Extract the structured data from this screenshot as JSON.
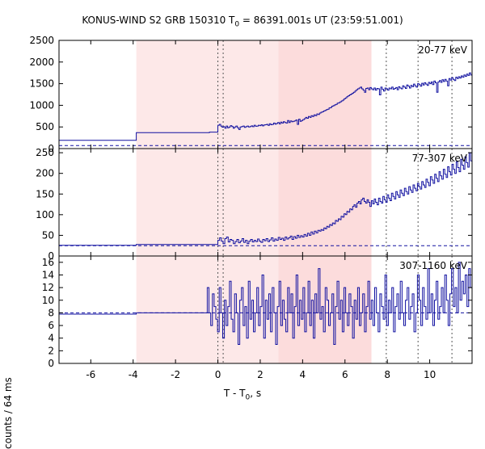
{
  "title": {
    "prefix": "KONUS-WIND S2 GRB 150310 T",
    "subscript": "0",
    "suffix": " = 86391.001s UT (23:59:51.001)"
  },
  "ylabel": "counts / 64 ms",
  "xlabel": {
    "prefix": "T - T",
    "subscript": "0",
    "suffix": ", s"
  },
  "colors": {
    "line": "#1010a0",
    "background": "#ff2020",
    "shade_light": "#fde8e8",
    "shade_dark": "#fcdcdc",
    "axis": "#000000",
    "vline": "#555555"
  },
  "chart_data": {
    "type": "line",
    "style": "step",
    "xlim": [
      -7.5,
      12
    ],
    "x_ticks": [
      -6,
      -4,
      -2,
      0,
      2,
      4,
      6,
      8,
      10
    ],
    "x_tick_labels": [
      "-6",
      "-4",
      "-2",
      "0",
      "2",
      "4",
      "6",
      "8",
      "10"
    ],
    "shaded_intervals": [
      {
        "from": -3.85,
        "to": 2.85,
        "shade": "light"
      },
      {
        "from": 2.85,
        "to": 7.25,
        "shade": "dark"
      }
    ],
    "vertical_lines": [
      0.0,
      0.25,
      7.95,
      9.45,
      11.05
    ],
    "panels": [
      {
        "label": "20-77 keV",
        "ylim": [
          0,
          2500
        ],
        "y_ticks": [
          0,
          500,
          1000,
          1500,
          2000,
          2500
        ],
        "y_tick_labels": [
          "0",
          "500",
          "1000",
          "1500",
          "2000",
          "2500"
        ],
        "background_level": 70,
        "series": [
          {
            "name": "20-77 keV",
            "segments": [
              {
                "from": -7.5,
                "to": -3.85,
                "values": [
                  190
                ]
              },
              {
                "from": -3.85,
                "to": -0.4,
                "values": [
                  370
                ]
              },
              {
                "from": -0.4,
                "to": 0.0,
                "values": [
                  380
                ]
              },
              {
                "from": 0.0,
                "to": 4.8,
                "values": [
                  540,
                  560,
                  520,
                  495,
                  505,
                  470,
                  520,
                  480,
                  500,
                  530,
                  510,
                  470,
                  500,
                  520,
                  480,
                  440,
                  500,
                  510,
                  520,
                  490,
                  505,
                  520,
                  500,
                  510,
                  525,
                  505,
                  540,
                  515,
                  520,
                  540,
                  530,
                  550,
                  525,
                  545,
                  550,
                  560,
                  535,
                  575,
                  550,
                  560,
                  590,
                  565,
                  580,
                  600,
                  570,
                  610,
                  590,
                  620,
                  600,
                  590,
                  650,
                  600,
                  640,
                  620,
                  630,
                  640,
                  660,
                  560,
                  680,
                  630,
                  650,
                  670,
                  690,
                  720,
                  700,
                  740,
                  720,
                  760,
                  740,
                  780,
                  760,
                  800,
                  790
                ]
              },
              {
                "from": 4.8,
                "to": 12.0,
                "values": [
                  820,
                  840,
                  850,
                  870,
                  880,
                  900,
                  910,
                  940,
                  950,
                  980,
                  990,
                  1010,
                  1020,
                  1050,
                  1060,
                  1080,
                  1100,
                  1120,
                  1150,
                  1170,
                  1200,
                  1220,
                  1240,
                  1260,
                  1280,
                  1300,
                  1330,
                  1360,
                  1380,
                  1400,
                  1420,
                  1380,
                  1350,
                  1300,
                  1390,
                  1400,
                  1360,
                  1410,
                  1380,
                  1360,
                  1400,
                  1350,
                  1390,
                  1380,
                  1240,
                  1420,
                  1370,
                  1330,
                  1400,
                  1380,
                  1350,
                  1400,
                  1380,
                  1420,
                  1370,
                  1390,
                  1410,
                  1360,
                  1430,
                  1400,
                  1380,
                  1450,
                  1420,
                  1390,
                  1470,
                  1440,
                  1400,
                  1460,
                  1430,
                  1490,
                  1450,
                  1420,
                  1500,
                  1480,
                  1440,
                  1510,
                  1470,
                  1520,
                  1490,
                  1460,
                  1530,
                  1500,
                  1540,
                  1480,
                  1560,
                  1520,
                  1300,
                  1540,
                  1570,
                  1530,
                  1590,
                  1550,
                  1600,
                  1560,
                  1450,
                  1620,
                  1580,
                  1640,
                  1600,
                  1570,
                  1650,
                  1620,
                  1660,
                  1630,
                  1680,
                  1650,
                  1700,
                  1670,
                  1720,
                  1690,
                  1750,
                  1700
                ]
              }
            ]
          }
        ]
      },
      {
        "label": "77-307 keV",
        "ylim": [
          0,
          260
        ],
        "y_ticks": [
          0,
          50,
          100,
          150,
          200,
          250
        ],
        "y_tick_labels": [
          "0",
          "50",
          "100",
          "150",
          "200",
          "250"
        ],
        "background_level": 25,
        "series": [
          {
            "name": "77-307 keV",
            "segments": [
              {
                "from": -7.5,
                "to": -3.85,
                "values": [
                  26
                ]
              },
              {
                "from": -3.85,
                "to": 0.0,
                "values": [
                  28
                ]
              },
              {
                "from": 0.0,
                "to": 4.8,
                "values": [
                  38,
                  44,
                  36,
                  30,
                  42,
                  46,
                  34,
                  40,
                  38,
                  30,
                  35,
                  40,
                  32,
                  36,
                  42,
                  33,
                  38,
                  30,
                  36,
                  40,
                  34,
                  38,
                  35,
                  41,
                  36,
                  33,
                  40,
                  37,
                  42,
                  35,
                  39,
                  44,
                  36,
                  41,
                  38,
                  45,
                  40,
                  43,
                  38,
                  46,
                  41,
                  44,
                  48,
                  40,
                  47,
                  43,
                  50,
                  45,
                  49,
                  46,
                  52,
                  48,
                  55,
                  50,
                  58,
                  53,
                  60,
                  56,
                  62
                ]
              },
              {
                "from": 4.8,
                "to": 12.0,
                "values": [
                  60,
                  64,
                  62,
                  68,
                  66,
                  72,
                  70,
                  76,
                  74,
                  80,
                  78,
                  86,
                  84,
                  90,
                  88,
                  96,
                  94,
                  102,
                  100,
                  108,
                  106,
                  114,
                  112,
                  120,
                  124,
                  118,
                  128,
                  132,
                  126,
                  136,
                  140,
                  132,
                  128,
                  136,
                  130,
                  120,
                  134,
                  126,
                  138,
                  130,
                  124,
                  140,
                  132,
                  128,
                  144,
                  136,
                  130,
                  148,
                  140,
                  134,
                  152,
                  144,
                  138,
                  156,
                  148,
                  142,
                  160,
                  152,
                  146,
                  164,
                  156,
                  150,
                  168,
                  160,
                  154,
                  172,
                  164,
                  158,
                  176,
                  168,
                  162,
                  180,
                  172,
                  166,
                  186,
                  178,
                  170,
                  192,
                  184,
                  176,
                  198,
                  188,
                  180,
                  204,
                  194,
                  186,
                  210,
                  198,
                  190,
                  216,
                  204,
                  196,
                  222,
                  210,
                  200,
                  228,
                  214,
                  204,
                  234,
                  220,
                  210,
                  240,
                  226,
                  215,
                  250,
                  230
                ]
              }
            ]
          }
        ]
      },
      {
        "label": "307-1160 keV",
        "ylim": [
          0,
          17
        ],
        "y_ticks": [
          0,
          2,
          4,
          6,
          8,
          10,
          12,
          14,
          16
        ],
        "y_tick_labels": [
          "0",
          "2",
          "4",
          "6",
          "8",
          "10",
          "12",
          "14",
          "16"
        ],
        "background_level": 8,
        "series": [
          {
            "name": "307-1160 keV",
            "segments": [
              {
                "from": -7.5,
                "to": -3.85,
                "values": [
                  7.8
                ]
              },
              {
                "from": -3.85,
                "to": -0.5,
                "values": [
                  8.0
                ]
              },
              {
                "from": -0.5,
                "to": 12.0,
                "values": [
                  12,
                  8,
                  6,
                  11,
                  9,
                  7,
                  5,
                  12,
                  8,
                  4,
                  10,
                  6,
                  9,
                  13,
                  7,
                  5,
                  11,
                  8,
                  3,
                  10,
                  12,
                  6,
                  9,
                  4,
                  13,
                  7,
                  10,
                  5,
                  8,
                  12,
                  6,
                  9,
                  14,
                  4,
                  10,
                  7,
                  11,
                  5,
                  12,
                  8,
                  3,
                  9,
                  13,
                  6,
                  10,
                  7,
                  5,
                  12,
                  8,
                  11,
                  4,
                  9,
                  14,
                  6,
                  10,
                  7,
                  12,
                  5,
                  8,
                  13,
                  6,
                  10,
                  4,
                  11,
                  8,
                  15,
                  7,
                  9,
                  5,
                  12,
                  10,
                  6,
                  8,
                  11,
                  3,
                  9,
                  13,
                  7,
                  10,
                  5,
                  12,
                  8,
                  6,
                  11,
                  9,
                  4,
                  10,
                  7,
                  12,
                  6,
                  8,
                  11,
                  5,
                  9,
                  13,
                  7,
                  10,
                  6,
                  12,
                  8,
                  5,
                  11,
                  9,
                  7,
                  14,
                  6,
                  10,
                  8,
                  12,
                  5,
                  9,
                  11,
                  7,
                  13,
                  8,
                  6,
                  10,
                  12,
                  7,
                  9,
                  11,
                  5,
                  8,
                  14,
                  10,
                  6,
                  12,
                  9,
                  7,
                  15,
                  8,
                  11,
                  6,
                  10,
                  13,
                  7,
                  9,
                  12,
                  8,
                  14,
                  10,
                  6,
                  11,
                  15,
                  9,
                  12,
                  8,
                  16,
                  10,
                  13,
                  11,
                  14,
                  9,
                  15,
                  12
                ]
              }
            ]
          }
        ]
      }
    ]
  }
}
